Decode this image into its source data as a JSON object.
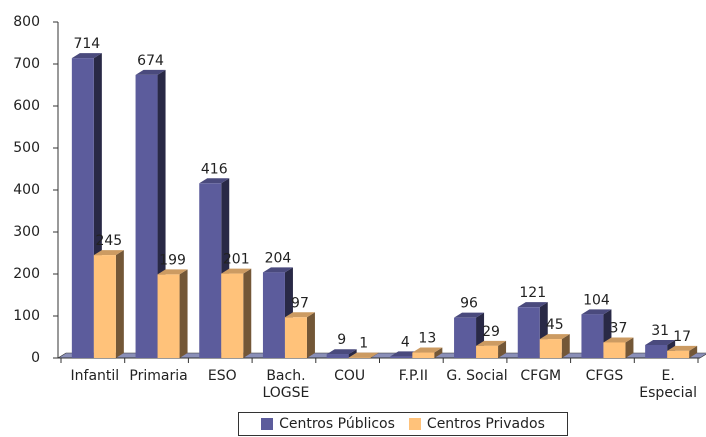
{
  "chart_data": {
    "type": "bar",
    "categories": [
      "Infantil",
      "Primaria",
      "ESO",
      "Bach. LOGSE",
      "COU",
      "F.P.II",
      "G. Social",
      "CFGM",
      "CFGS",
      "E. Especial"
    ],
    "series": [
      {
        "name": "Centros Públicos",
        "color": "#5c5c9c",
        "values": [
          714,
          674,
          416,
          204,
          9,
          4,
          96,
          121,
          104,
          31
        ]
      },
      {
        "name": "Centros Privados",
        "color": "#ffc27a",
        "values": [
          245,
          199,
          201,
          97,
          1,
          13,
          29,
          45,
          37,
          17
        ]
      }
    ],
    "ylim": [
      0,
      800
    ],
    "yticks": [
      0,
      100,
      200,
      300,
      400,
      500,
      600,
      700,
      800
    ],
    "legend": "bottom"
  }
}
